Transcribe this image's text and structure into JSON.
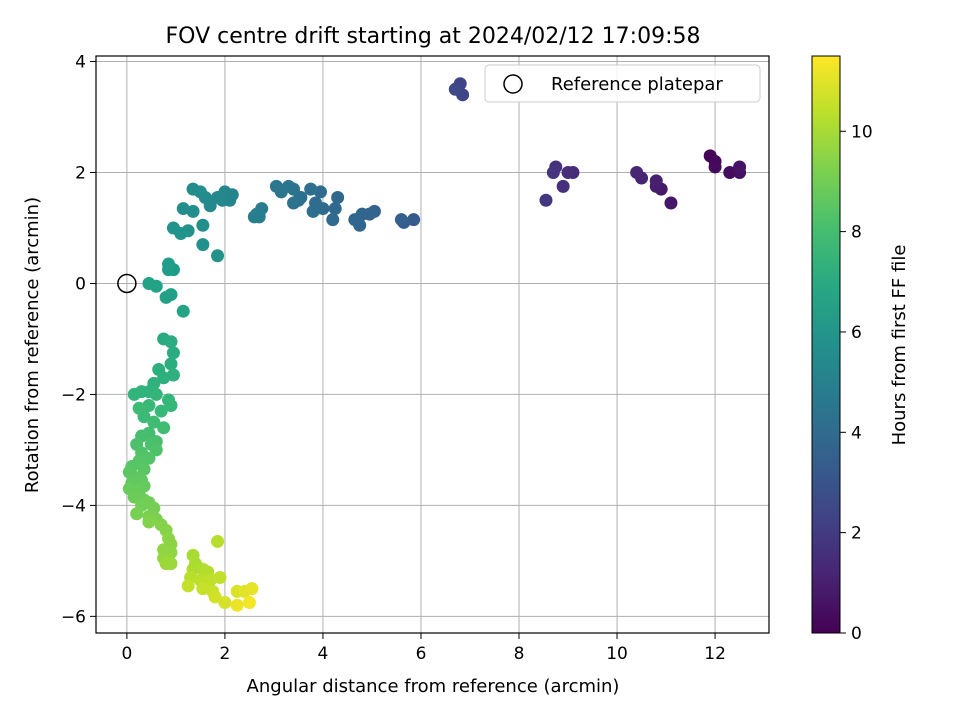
{
  "chart_data": {
    "type": "scatter",
    "title": "FOV centre drift starting at 2024/02/12 17:09:58",
    "xlabel": "Angular distance from reference (arcmin)",
    "ylabel": "Rotation from reference (arcmin)",
    "xlim": [
      -0.63,
      13.1
    ],
    "ylim": [
      -6.3,
      4.1
    ],
    "xticks": [
      "0",
      "2",
      "4",
      "6",
      "8",
      "10",
      "12"
    ],
    "xtick_values": [
      0,
      2,
      4,
      6,
      8,
      10,
      12
    ],
    "yticks": [
      "−6",
      "−4",
      "−2",
      "0",
      "2",
      "4"
    ],
    "ytick_values": [
      -6,
      -4,
      -2,
      0,
      2,
      4
    ],
    "grid": true,
    "legend": {
      "placement": "top-right",
      "label": "Reference platepar"
    },
    "reference_point": {
      "x": 0,
      "y": 0
    },
    "colorbar": {
      "label": "Hours from first FF file",
      "colormap": "viridis",
      "range": [
        0,
        11.5
      ],
      "ticks": [
        "0",
        "2",
        "4",
        "6",
        "8",
        "10"
      ],
      "tick_values": [
        0,
        2,
        4,
        6,
        8,
        10
      ]
    },
    "points": [
      {
        "x": 11.9,
        "y": 2.3,
        "h": 0.1
      },
      {
        "x": 12.0,
        "y": 2.2,
        "h": 0.2
      },
      {
        "x": 12.0,
        "y": 2.1,
        "h": 0.3
      },
      {
        "x": 12.3,
        "y": 2.0,
        "h": 0.4
      },
      {
        "x": 12.5,
        "y": 2.0,
        "h": 0.5
      },
      {
        "x": 12.5,
        "y": 2.1,
        "h": 0.6
      },
      {
        "x": 11.1,
        "y": 1.45,
        "h": 0.7
      },
      {
        "x": 10.9,
        "y": 1.7,
        "h": 0.8
      },
      {
        "x": 10.8,
        "y": 1.75,
        "h": 0.9
      },
      {
        "x": 10.8,
        "y": 1.85,
        "h": 1.0
      },
      {
        "x": 10.5,
        "y": 1.9,
        "h": 1.1
      },
      {
        "x": 10.4,
        "y": 2.0,
        "h": 1.2
      },
      {
        "x": 9.1,
        "y": 2.0,
        "h": 1.35
      },
      {
        "x": 9.0,
        "y": 2.0,
        "h": 1.45
      },
      {
        "x": 8.9,
        "y": 1.75,
        "h": 1.55
      },
      {
        "x": 8.75,
        "y": 2.1,
        "h": 1.65
      },
      {
        "x": 8.7,
        "y": 2.0,
        "h": 1.75
      },
      {
        "x": 8.55,
        "y": 1.5,
        "h": 1.85
      },
      {
        "x": 6.8,
        "y": 3.6,
        "h": 2.3
      },
      {
        "x": 6.85,
        "y": 3.4,
        "h": 2.4
      },
      {
        "x": 6.7,
        "y": 3.5,
        "h": 2.5
      },
      {
        "x": 5.85,
        "y": 1.15,
        "h": 3.3
      },
      {
        "x": 5.65,
        "y": 1.1,
        "h": 3.4
      },
      {
        "x": 5.6,
        "y": 1.15,
        "h": 3.5
      },
      {
        "x": 5.05,
        "y": 1.3,
        "h": 3.6
      },
      {
        "x": 4.95,
        "y": 1.25,
        "h": 3.65
      },
      {
        "x": 4.8,
        "y": 1.25,
        "h": 3.7
      },
      {
        "x": 4.75,
        "y": 1.05,
        "h": 3.75
      },
      {
        "x": 4.65,
        "y": 1.15,
        "h": 3.8
      },
      {
        "x": 4.3,
        "y": 1.55,
        "h": 3.85
      },
      {
        "x": 4.25,
        "y": 1.35,
        "h": 3.9
      },
      {
        "x": 4.2,
        "y": 1.15,
        "h": 3.95
      },
      {
        "x": 4.0,
        "y": 1.35,
        "h": 4.0
      },
      {
        "x": 3.95,
        "y": 1.65,
        "h": 4.05
      },
      {
        "x": 3.85,
        "y": 1.45,
        "h": 4.1
      },
      {
        "x": 3.8,
        "y": 1.3,
        "h": 4.15
      },
      {
        "x": 3.75,
        "y": 1.7,
        "h": 4.2
      },
      {
        "x": 3.55,
        "y": 1.55,
        "h": 4.25
      },
      {
        "x": 3.5,
        "y": 1.5,
        "h": 4.3
      },
      {
        "x": 3.4,
        "y": 1.45,
        "h": 4.35
      },
      {
        "x": 3.4,
        "y": 1.7,
        "h": 4.4
      },
      {
        "x": 3.3,
        "y": 1.75,
        "h": 4.45
      },
      {
        "x": 3.15,
        "y": 1.65,
        "h": 4.5
      },
      {
        "x": 3.05,
        "y": 1.75,
        "h": 4.55
      },
      {
        "x": 2.75,
        "y": 1.35,
        "h": 4.8
      },
      {
        "x": 2.7,
        "y": 1.2,
        "h": 4.85
      },
      {
        "x": 2.65,
        "y": 1.25,
        "h": 4.9
      },
      {
        "x": 2.6,
        "y": 1.2,
        "h": 4.95
      },
      {
        "x": 2.15,
        "y": 1.6,
        "h": 5.2
      },
      {
        "x": 2.1,
        "y": 1.5,
        "h": 5.25
      },
      {
        "x": 2.0,
        "y": 1.65,
        "h": 5.3
      },
      {
        "x": 1.95,
        "y": 1.5,
        "h": 5.35
      },
      {
        "x": 1.85,
        "y": 1.55,
        "h": 5.4
      },
      {
        "x": 1.7,
        "y": 1.4,
        "h": 5.45
      },
      {
        "x": 1.6,
        "y": 1.55,
        "h": 5.5
      },
      {
        "x": 1.5,
        "y": 1.65,
        "h": 5.55
      },
      {
        "x": 1.35,
        "y": 1.7,
        "h": 5.6
      },
      {
        "x": 1.35,
        "y": 1.3,
        "h": 5.65
      },
      {
        "x": 1.15,
        "y": 1.35,
        "h": 5.7
      },
      {
        "x": 1.55,
        "y": 1.05,
        "h": 5.75
      },
      {
        "x": 1.55,
        "y": 0.7,
        "h": 5.8
      },
      {
        "x": 1.85,
        "y": 0.5,
        "h": 5.85
      },
      {
        "x": 1.25,
        "y": 0.95,
        "h": 5.9
      },
      {
        "x": 1.1,
        "y": 0.9,
        "h": 5.95
      },
      {
        "x": 0.95,
        "y": 1.0,
        "h": 6.0
      },
      {
        "x": 0.95,
        "y": 0.25,
        "h": 6.3
      },
      {
        "x": 0.85,
        "y": 0.25,
        "h": 6.35
      },
      {
        "x": 0.85,
        "y": 0.35,
        "h": 6.4
      },
      {
        "x": 0.9,
        "y": -0.2,
        "h": 6.5
      },
      {
        "x": 0.8,
        "y": -0.25,
        "h": 6.55
      },
      {
        "x": 0.6,
        "y": -0.05,
        "h": 6.6
      },
      {
        "x": 0.45,
        "y": 0.0,
        "h": 6.65
      },
      {
        "x": 1.15,
        "y": -0.5,
        "h": 6.7
      },
      {
        "x": 0.75,
        "y": -1.0,
        "h": 7.0
      },
      {
        "x": 0.9,
        "y": -1.05,
        "h": 7.05
      },
      {
        "x": 0.95,
        "y": -1.25,
        "h": 7.1
      },
      {
        "x": 0.9,
        "y": -1.45,
        "h": 7.15
      },
      {
        "x": 0.65,
        "y": -1.55,
        "h": 7.2
      },
      {
        "x": 0.75,
        "y": -1.7,
        "h": 7.25
      },
      {
        "x": 0.95,
        "y": -1.65,
        "h": 7.3
      },
      {
        "x": 0.55,
        "y": -1.8,
        "h": 7.35
      },
      {
        "x": 0.45,
        "y": -1.95,
        "h": 7.4
      },
      {
        "x": 0.3,
        "y": -1.95,
        "h": 7.45
      },
      {
        "x": 0.15,
        "y": -2.0,
        "h": 7.5
      },
      {
        "x": 0.6,
        "y": -2.0,
        "h": 7.55
      },
      {
        "x": 0.85,
        "y": -2.1,
        "h": 7.6
      },
      {
        "x": 0.9,
        "y": -2.2,
        "h": 7.65
      },
      {
        "x": 0.7,
        "y": -2.3,
        "h": 7.7
      },
      {
        "x": 0.45,
        "y": -2.2,
        "h": 7.75
      },
      {
        "x": 0.35,
        "y": -2.4,
        "h": 7.8
      },
      {
        "x": 0.25,
        "y": -2.25,
        "h": 7.85
      },
      {
        "x": 0.55,
        "y": -2.5,
        "h": 7.9
      },
      {
        "x": 0.75,
        "y": -2.6,
        "h": 7.95
      },
      {
        "x": 0.45,
        "y": -2.7,
        "h": 8.0
      },
      {
        "x": 0.3,
        "y": -2.75,
        "h": 8.05
      },
      {
        "x": 0.6,
        "y": -2.85,
        "h": 8.1
      },
      {
        "x": 0.5,
        "y": -2.9,
        "h": 8.15
      },
      {
        "x": 0.2,
        "y": -2.9,
        "h": 8.2
      },
      {
        "x": 0.6,
        "y": -3.0,
        "h": 8.25
      },
      {
        "x": 0.3,
        "y": -3.05,
        "h": 8.3
      },
      {
        "x": 0.45,
        "y": -3.15,
        "h": 8.35
      },
      {
        "x": 0.25,
        "y": -3.2,
        "h": 8.4
      },
      {
        "x": 0.1,
        "y": -3.3,
        "h": 8.45
      },
      {
        "x": 0.35,
        "y": -3.35,
        "h": 8.5
      },
      {
        "x": 0.05,
        "y": -3.4,
        "h": 8.55
      },
      {
        "x": 0.2,
        "y": -3.5,
        "h": 8.6
      },
      {
        "x": 0.3,
        "y": -3.55,
        "h": 8.65
      },
      {
        "x": 0.1,
        "y": -3.6,
        "h": 8.7
      },
      {
        "x": 0.35,
        "y": -3.65,
        "h": 8.75
      },
      {
        "x": 0.05,
        "y": -3.7,
        "h": 8.8
      },
      {
        "x": 0.25,
        "y": -3.75,
        "h": 8.85
      },
      {
        "x": 0.15,
        "y": -3.85,
        "h": 8.9
      },
      {
        "x": 0.35,
        "y": -3.9,
        "h": 8.95
      },
      {
        "x": 0.45,
        "y": -3.95,
        "h": 9.0
      },
      {
        "x": 0.3,
        "y": -4.0,
        "h": 9.05
      },
      {
        "x": 0.55,
        "y": -4.05,
        "h": 9.1
      },
      {
        "x": 0.2,
        "y": -4.15,
        "h": 9.15
      },
      {
        "x": 0.45,
        "y": -4.2,
        "h": 9.2
      },
      {
        "x": 0.6,
        "y": -4.25,
        "h": 9.25
      },
      {
        "x": 0.45,
        "y": -4.3,
        "h": 9.3
      },
      {
        "x": 0.7,
        "y": -4.35,
        "h": 9.35
      },
      {
        "x": 0.8,
        "y": -4.45,
        "h": 9.4
      },
      {
        "x": 0.85,
        "y": -4.6,
        "h": 9.45
      },
      {
        "x": 0.9,
        "y": -4.7,
        "h": 9.5
      },
      {
        "x": 0.75,
        "y": -4.8,
        "h": 9.55
      },
      {
        "x": 0.9,
        "y": -4.85,
        "h": 9.6
      },
      {
        "x": 0.75,
        "y": -4.95,
        "h": 9.65
      },
      {
        "x": 0.85,
        "y": -5.0,
        "h": 9.7
      },
      {
        "x": 0.9,
        "y": -5.05,
        "h": 9.75
      },
      {
        "x": 0.8,
        "y": -5.05,
        "h": 9.8
      },
      {
        "x": 1.35,
        "y": -4.9,
        "h": 10.0
      },
      {
        "x": 1.4,
        "y": -5.05,
        "h": 10.05
      },
      {
        "x": 1.35,
        "y": -5.15,
        "h": 10.1
      },
      {
        "x": 1.55,
        "y": -5.15,
        "h": 10.15
      },
      {
        "x": 1.65,
        "y": -5.2,
        "h": 10.2
      },
      {
        "x": 1.85,
        "y": -4.65,
        "h": 10.25
      },
      {
        "x": 1.3,
        "y": -5.3,
        "h": 10.3
      },
      {
        "x": 1.5,
        "y": -5.35,
        "h": 10.35
      },
      {
        "x": 1.7,
        "y": -5.35,
        "h": 10.4
      },
      {
        "x": 1.9,
        "y": -5.3,
        "h": 10.45
      },
      {
        "x": 1.25,
        "y": -5.45,
        "h": 10.5
      },
      {
        "x": 1.55,
        "y": -5.5,
        "h": 10.55
      },
      {
        "x": 1.75,
        "y": -5.55,
        "h": 10.6
      },
      {
        "x": 1.8,
        "y": -5.65,
        "h": 10.7
      },
      {
        "x": 2.0,
        "y": -5.75,
        "h": 10.8
      },
      {
        "x": 2.25,
        "y": -5.55,
        "h": 10.9
      },
      {
        "x": 2.4,
        "y": -5.55,
        "h": 11.0
      },
      {
        "x": 2.55,
        "y": -5.5,
        "h": 11.1
      },
      {
        "x": 2.25,
        "y": -5.8,
        "h": 11.2
      },
      {
        "x": 2.5,
        "y": -5.75,
        "h": 11.3
      }
    ]
  }
}
